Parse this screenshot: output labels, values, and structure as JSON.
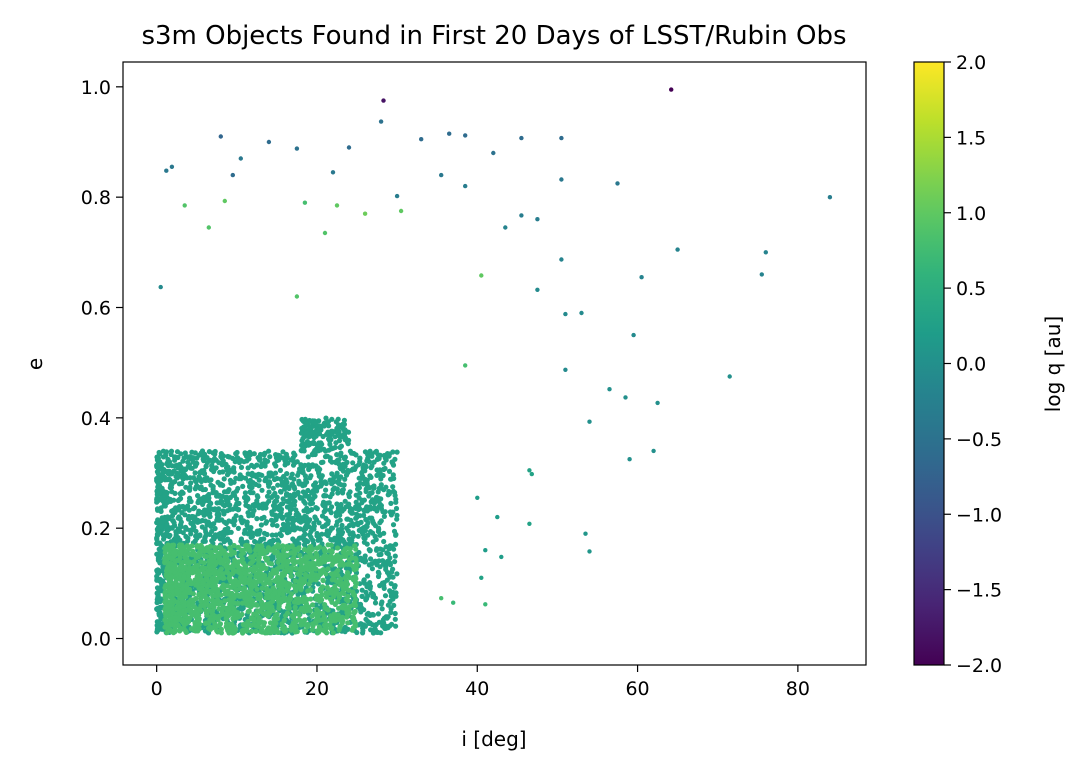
{
  "chart_data": {
    "type": "scatter",
    "title": "s3m Objects Found in First 20 Days of LSST/Rubin Obs",
    "xlabel": "i [deg]",
    "ylabel": "e",
    "xlim": [
      -4.2,
      88.5
    ],
    "ylim": [
      -0.048,
      1.045
    ],
    "x_ticks": [
      0,
      20,
      40,
      60,
      80
    ],
    "x_tick_labels": [
      "0",
      "20",
      "40",
      "60",
      "80"
    ],
    "y_ticks": [
      0.0,
      0.2,
      0.4,
      0.6,
      0.8,
      1.0
    ],
    "y_tick_labels": [
      "0.0",
      "0.2",
      "0.4",
      "0.6",
      "0.8",
      "1.0"
    ],
    "grid": false,
    "colormap": "viridis",
    "colorbar": {
      "label": "log q [au]",
      "range": [
        -2.0,
        2.0
      ],
      "ticks": [
        -2.0,
        -1.5,
        -1.0,
        -0.5,
        0.0,
        0.5,
        1.0,
        1.5,
        2.0
      ],
      "tick_labels": [
        "−2.0",
        "−1.5",
        "−1.0",
        "−0.5",
        "0.0",
        "0.5",
        "1.0",
        "1.5",
        "2.0"
      ]
    },
    "dense_regions": [
      {
        "x_range": [
          0,
          30
        ],
        "y_range": [
          0.01,
          0.34
        ],
        "color_value": 0.3
      },
      {
        "x_range": [
          1,
          25
        ],
        "y_range": [
          0.01,
          0.17
        ],
        "color_value": 0.8
      },
      {
        "x_range": [
          18,
          24
        ],
        "y_range": [
          0.34,
          0.4
        ],
        "color_value": 0.3
      }
    ],
    "series": [
      {
        "points": [
          {
            "x": 64.2,
            "y": 0.995,
            "c": -2.0
          },
          {
            "x": 28.3,
            "y": 0.975,
            "c": -1.8
          },
          {
            "x": 28.0,
            "y": 0.937,
            "c": -0.5
          },
          {
            "x": 8.0,
            "y": 0.91,
            "c": -0.7
          },
          {
            "x": 33.0,
            "y": 0.905,
            "c": -0.6
          },
          {
            "x": 36.5,
            "y": 0.915,
            "c": -0.6
          },
          {
            "x": 38.5,
            "y": 0.912,
            "c": -0.6
          },
          {
            "x": 45.5,
            "y": 0.907,
            "c": -0.6
          },
          {
            "x": 50.5,
            "y": 0.907,
            "c": -0.6
          },
          {
            "x": 14.0,
            "y": 0.9,
            "c": -0.6
          },
          {
            "x": 24.0,
            "y": 0.89,
            "c": -0.6
          },
          {
            "x": 17.5,
            "y": 0.888,
            "c": -0.5
          },
          {
            "x": 42.0,
            "y": 0.88,
            "c": -0.5
          },
          {
            "x": 10.5,
            "y": 0.87,
            "c": -0.4
          },
          {
            "x": 1.9,
            "y": 0.855,
            "c": -0.4
          },
          {
            "x": 1.2,
            "y": 0.848,
            "c": -0.4
          },
          {
            "x": 22.0,
            "y": 0.845,
            "c": -0.4
          },
          {
            "x": 9.5,
            "y": 0.84,
            "c": -0.6
          },
          {
            "x": 35.5,
            "y": 0.84,
            "c": -0.4
          },
          {
            "x": 50.5,
            "y": 0.832,
            "c": -0.4
          },
          {
            "x": 57.5,
            "y": 0.825,
            "c": -0.4
          },
          {
            "x": 38.5,
            "y": 0.82,
            "c": -0.3
          },
          {
            "x": 30.0,
            "y": 0.802,
            "c": -0.3
          },
          {
            "x": 84.0,
            "y": 0.8,
            "c": -0.3
          },
          {
            "x": 3.5,
            "y": 0.785,
            "c": 0.9
          },
          {
            "x": 8.5,
            "y": 0.793,
            "c": 1.0
          },
          {
            "x": 18.5,
            "y": 0.79,
            "c": 0.8
          },
          {
            "x": 22.5,
            "y": 0.785,
            "c": 1.0
          },
          {
            "x": 26.0,
            "y": 0.77,
            "c": 1.1
          },
          {
            "x": 30.5,
            "y": 0.775,
            "c": 1.0
          },
          {
            "x": 45.5,
            "y": 0.767,
            "c": -0.3
          },
          {
            "x": 47.5,
            "y": 0.76,
            "c": -0.3
          },
          {
            "x": 6.5,
            "y": 0.745,
            "c": 0.9
          },
          {
            "x": 21.0,
            "y": 0.735,
            "c": 0.9
          },
          {
            "x": 43.5,
            "y": 0.745,
            "c": -0.2
          },
          {
            "x": 65.0,
            "y": 0.705,
            "c": -0.2
          },
          {
            "x": 76.0,
            "y": 0.7,
            "c": -0.2
          },
          {
            "x": 50.5,
            "y": 0.687,
            "c": -0.2
          },
          {
            "x": 40.5,
            "y": 0.658,
            "c": 1.0
          },
          {
            "x": 60.5,
            "y": 0.655,
            "c": -0.2
          },
          {
            "x": 75.5,
            "y": 0.66,
            "c": -0.2
          },
          {
            "x": 0.5,
            "y": 0.637,
            "c": -0.1
          },
          {
            "x": 17.5,
            "y": 0.62,
            "c": 0.9
          },
          {
            "x": 47.5,
            "y": 0.632,
            "c": -0.1
          },
          {
            "x": 53.0,
            "y": 0.59,
            "c": -0.1
          },
          {
            "x": 51.0,
            "y": 0.588,
            "c": -0.1
          },
          {
            "x": 59.5,
            "y": 0.55,
            "c": -0.1
          },
          {
            "x": 38.5,
            "y": 0.495,
            "c": 0.8
          },
          {
            "x": 51.0,
            "y": 0.487,
            "c": -0.1
          },
          {
            "x": 71.5,
            "y": 0.475,
            "c": 0.0
          },
          {
            "x": 56.5,
            "y": 0.452,
            "c": 0.0
          },
          {
            "x": 58.5,
            "y": 0.437,
            "c": 0.0
          },
          {
            "x": 62.5,
            "y": 0.427,
            "c": 0.0
          },
          {
            "x": 54.0,
            "y": 0.393,
            "c": 0.0
          },
          {
            "x": 59.0,
            "y": 0.325,
            "c": 0.0
          },
          {
            "x": 62.0,
            "y": 0.34,
            "c": 0.0
          },
          {
            "x": 46.5,
            "y": 0.305,
            "c": 0.3
          },
          {
            "x": 46.8,
            "y": 0.298,
            "c": 0.3
          },
          {
            "x": 40.0,
            "y": 0.255,
            "c": 0.2
          },
          {
            "x": 42.5,
            "y": 0.22,
            "c": 0.2
          },
          {
            "x": 46.5,
            "y": 0.208,
            "c": 0.3
          },
          {
            "x": 53.5,
            "y": 0.19,
            "c": 0.1
          },
          {
            "x": 54.0,
            "y": 0.158,
            "c": 0.1
          },
          {
            "x": 41.0,
            "y": 0.16,
            "c": 0.2
          },
          {
            "x": 43.0,
            "y": 0.148,
            "c": 0.2
          },
          {
            "x": 40.5,
            "y": 0.11,
            "c": 0.3
          },
          {
            "x": 41.0,
            "y": 0.062,
            "c": 0.7
          },
          {
            "x": 37.0,
            "y": 0.065,
            "c": 0.7
          },
          {
            "x": 35.5,
            "y": 0.073,
            "c": 0.8
          }
        ]
      }
    ]
  }
}
